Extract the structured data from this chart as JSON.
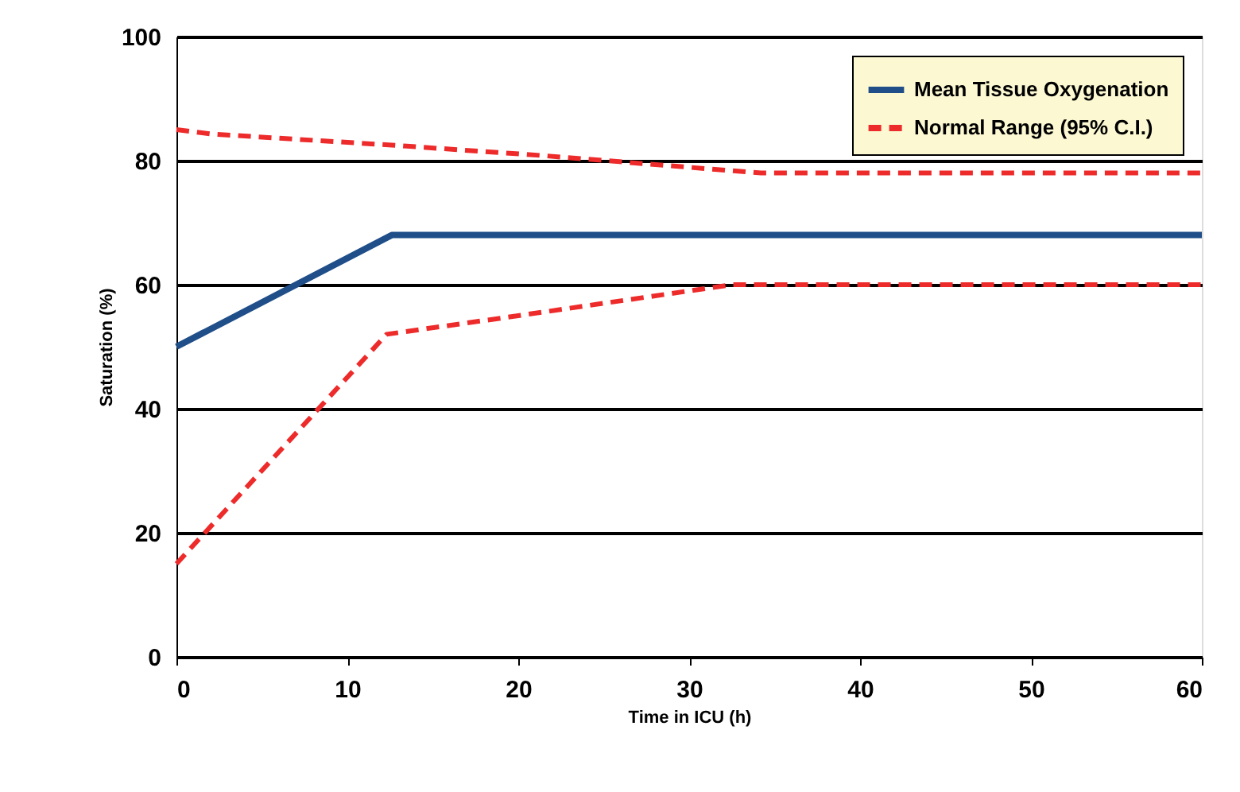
{
  "chart_data": {
    "type": "line",
    "xlabel": "Time in ICU (h)",
    "ylabel": "Saturation (%)",
    "xlim": [
      0,
      60
    ],
    "xticks": [
      0,
      10,
      20,
      30,
      40,
      50,
      60
    ],
    "ylim": [
      0,
      100
    ],
    "yticks": [
      0,
      20,
      40,
      60,
      80,
      100
    ],
    "grid": "y",
    "legend": "top right",
    "marker": "none",
    "series": [
      {
        "name": "Mean Tissue Oxygenation",
        "color": "#1f4e89",
        "line_style": "solid",
        "x": [
          0,
          12.6,
          60
        ],
        "values": [
          50,
          68,
          68
        ]
      },
      {
        "name": "Normal Range (95% C.I.)",
        "color": "#ee2b2b",
        "line_style": "dashed",
        "x": [
          0,
          2,
          12.6,
          21.5,
          34.2,
          60
        ],
        "values": [
          85,
          84.3,
          82.5,
          80.8,
          78,
          78
        ]
      },
      {
        "color": "#ee2b2b",
        "line_style": "dashed",
        "x": [
          0,
          12.3,
          20,
          32.5,
          60
        ],
        "values": [
          15,
          52,
          55,
          60,
          60
        ]
      }
    ]
  }
}
